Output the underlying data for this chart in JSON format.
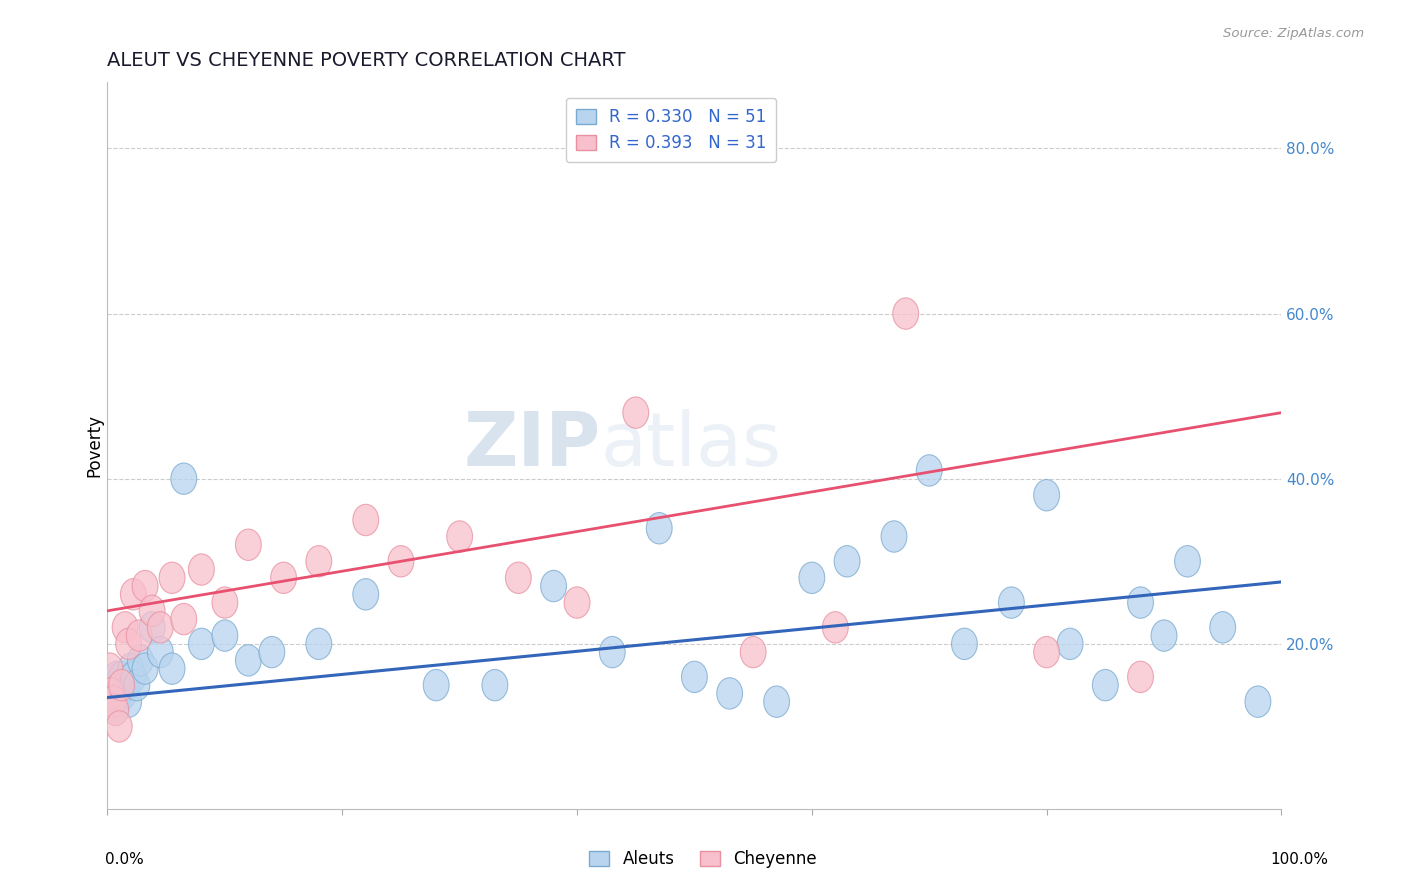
{
  "title": "ALEUT VS CHEYENNE POVERTY CORRELATION CHART",
  "source": "Source: ZipAtlas.com",
  "ylabel": "Poverty",
  "xlim": [
    0,
    100
  ],
  "ylim": [
    0,
    88
  ],
  "yticks": [
    20,
    40,
    60,
    80
  ],
  "ytick_labels": [
    "20.0%",
    "40.0%",
    "60.0%",
    "80.0%"
  ],
  "aleuts_R": 0.33,
  "aleuts_N": 51,
  "cheyenne_R": 0.393,
  "cheyenne_N": 31,
  "aleuts_face_color": "#b8d4ee",
  "aleuts_edge_color": "#7aaad0",
  "cheyenne_face_color": "#f8c0cc",
  "cheyenne_edge_color": "#e890a0",
  "aleuts_line_color": "#3366bb",
  "cheyenne_line_color": "#e85070",
  "legend_text_color": "#3366cc",
  "background_color": "#ffffff",
  "grid_color": "#cccccc",
  "watermark_color": "#d0dce8",
  "aleuts_x": [
    0.2,
    0.3,
    0.4,
    0.5,
    0.6,
    0.7,
    0.8,
    0.9,
    1.0,
    1.1,
    1.2,
    1.4,
    1.6,
    1.8,
    2.0,
    2.2,
    2.5,
    2.8,
    3.2,
    3.8,
    4.5,
    5.5,
    6.5,
    8.0,
    10.0,
    12.0,
    14.0,
    18.0,
    22.0,
    28.0,
    33.0,
    38.0,
    43.0,
    47.0,
    50.0,
    53.0,
    57.0,
    60.0,
    63.0,
    67.0,
    70.0,
    73.0,
    77.0,
    80.0,
    82.0,
    85.0,
    88.0,
    90.0,
    92.0,
    95.0,
    98.0
  ],
  "aleuts_y": [
    13,
    14,
    13,
    15,
    14,
    12,
    16,
    13,
    14,
    15,
    16,
    14,
    15,
    13,
    17,
    16,
    15,
    18,
    17,
    22,
    19,
    17,
    40,
    20,
    21,
    18,
    19,
    20,
    26,
    15,
    15,
    27,
    19,
    34,
    16,
    14,
    13,
    28,
    30,
    33,
    41,
    20,
    25,
    38,
    20,
    15,
    25,
    21,
    30,
    22,
    13
  ],
  "cheyenne_x": [
    0.2,
    0.3,
    0.5,
    0.7,
    1.0,
    1.2,
    1.5,
    1.8,
    2.2,
    2.7,
    3.2,
    3.8,
    4.5,
    5.5,
    6.5,
    8.0,
    10.0,
    12.0,
    15.0,
    18.0,
    22.0,
    25.0,
    30.0,
    35.0,
    40.0,
    45.0,
    55.0,
    62.0,
    68.0,
    80.0,
    88.0
  ],
  "cheyenne_y": [
    17,
    14,
    13,
    12,
    10,
    15,
    22,
    20,
    26,
    21,
    27,
    24,
    22,
    28,
    23,
    29,
    25,
    32,
    28,
    30,
    35,
    30,
    33,
    28,
    25,
    48,
    19,
    22,
    60,
    19,
    16
  ],
  "aleuts_line_x0": 0,
  "aleuts_line_y0": 13.5,
  "aleuts_line_x1": 100,
  "aleuts_line_y1": 27.5,
  "cheyenne_line_x0": 0,
  "cheyenne_line_y0": 24.0,
  "cheyenne_line_x1": 100,
  "cheyenne_line_y1": 48.0
}
